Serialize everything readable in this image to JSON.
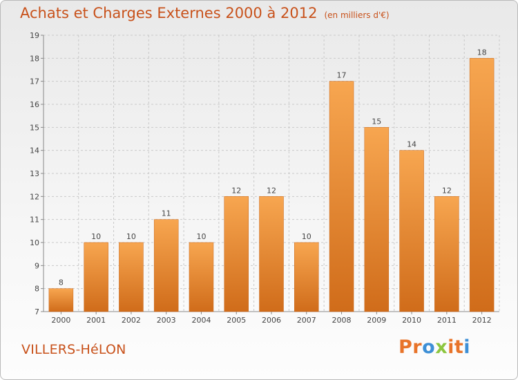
{
  "header": {
    "title": "Achats et Charges Externes 2000 à 2012",
    "unit": "(en milliers d'€)"
  },
  "footer": {
    "place": "VILLERS-HéLON",
    "logo_text": "Proxiti"
  },
  "colors": {
    "accent": "#c8511a",
    "bar_top": "#f7a650",
    "bar_bottom": "#d06c1a",
    "logo": [
      "#e8742a",
      "#e8742a",
      "#3d8fd6",
      "#8cc63f",
      "#e8742a",
      "#e8742a",
      "#3d8fd6"
    ]
  },
  "chart_data": {
    "type": "bar",
    "title": "Achats et Charges Externes 2000 à 2012",
    "subtitle": "(en milliers d'€)",
    "xlabel": "",
    "ylabel": "",
    "categories": [
      "2000",
      "2001",
      "2002",
      "2003",
      "2004",
      "2005",
      "2006",
      "2007",
      "2008",
      "2009",
      "2010",
      "2011",
      "2012"
    ],
    "values": [
      8,
      10,
      10,
      11,
      10,
      12,
      12,
      10,
      17,
      15,
      14,
      12,
      18
    ],
    "ylim": [
      7,
      19
    ],
    "yticks": [
      7,
      8,
      9,
      10,
      11,
      12,
      13,
      14,
      15,
      16,
      17,
      18,
      19
    ],
    "grid": true,
    "data_labels": true
  }
}
